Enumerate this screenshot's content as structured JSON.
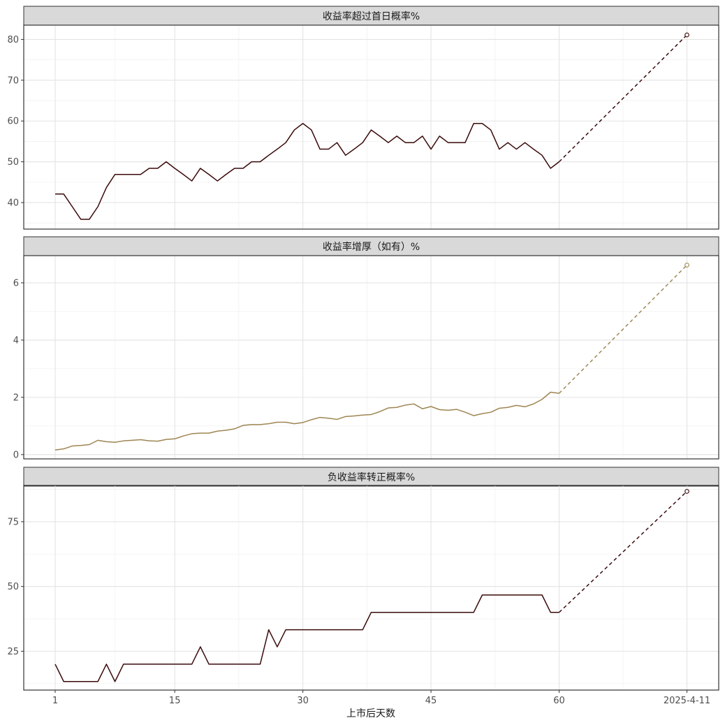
{
  "chart_data": {
    "type": "line",
    "layout": "3 vertically stacked facets, shared x axis, theme_bw grey facet strips",
    "xlabel": "上市后天数",
    "x_ticks": [
      "1",
      "15",
      "30",
      "45",
      "60",
      "2025-4-11"
    ],
    "grid": true,
    "legend": "none",
    "facets": [
      {
        "title": "收益率超过首日概率%",
        "color": "#3a0a0a",
        "y_ticks": [
          40,
          50,
          60,
          70,
          80
        ],
        "ylim": [
          33.5,
          83.5
        ],
        "x": [
          1,
          2,
          3,
          4,
          5,
          6,
          7,
          8,
          9,
          10,
          11,
          12,
          13,
          14,
          15,
          16,
          17,
          18,
          19,
          20,
          21,
          22,
          23,
          24,
          25,
          26,
          27,
          28,
          29,
          30,
          31,
          32,
          33,
          34,
          35,
          36,
          37,
          38,
          39,
          40,
          41,
          42,
          43,
          44,
          45,
          46,
          47,
          48,
          49,
          50,
          51,
          52,
          53,
          54,
          55,
          56,
          57,
          58,
          59,
          60
        ],
        "values": [
          42.1,
          42.1,
          39,
          35.9,
          35.9,
          39,
          43.7,
          46.9,
          46.9,
          46.9,
          46.9,
          48.4,
          48.4,
          50,
          48.4,
          46.9,
          45.3,
          48.4,
          46.9,
          45.3,
          46.9,
          48.4,
          48.4,
          50,
          50,
          51.6,
          53.1,
          54.7,
          57.8,
          59.4,
          57.8,
          53.1,
          53.1,
          54.7,
          51.6,
          53.1,
          54.7,
          57.8,
          56.3,
          54.7,
          56.3,
          54.7,
          54.7,
          56.3,
          53.1,
          56.3,
          54.7,
          54.7,
          54.7,
          59.4,
          59.4,
          57.8,
          53.1,
          54.7,
          53.1,
          54.7,
          53.1,
          51.6,
          48.4,
          50
        ],
        "projection": {
          "from_x": 60,
          "from_value": 50,
          "to_label": "2025-4-11",
          "to_value": 81.1
        }
      },
      {
        "title": "收益率增厚（如有）%",
        "color": "#9e8552",
        "y_ticks": [
          0,
          2,
          4,
          6
        ],
        "ylim": [
          -0.15,
          6.95
        ],
        "x": [
          1,
          2,
          3,
          4,
          5,
          6,
          7,
          8,
          9,
          10,
          11,
          12,
          13,
          14,
          15,
          16,
          17,
          18,
          19,
          20,
          21,
          22,
          23,
          24,
          25,
          26,
          27,
          28,
          29,
          30,
          31,
          32,
          33,
          34,
          35,
          36,
          37,
          38,
          39,
          40,
          41,
          42,
          43,
          44,
          45,
          46,
          47,
          48,
          49,
          50,
          51,
          52,
          53,
          54,
          55,
          56,
          57,
          58,
          59,
          60
        ],
        "values": [
          0.16,
          0.2,
          0.3,
          0.32,
          0.35,
          0.5,
          0.45,
          0.43,
          0.48,
          0.5,
          0.52,
          0.48,
          0.47,
          0.53,
          0.55,
          0.65,
          0.73,
          0.75,
          0.75,
          0.82,
          0.85,
          0.9,
          1.02,
          1.05,
          1.05,
          1.08,
          1.13,
          1.13,
          1.08,
          1.12,
          1.22,
          1.3,
          1.27,
          1.23,
          1.33,
          1.35,
          1.38,
          1.4,
          1.5,
          1.63,
          1.65,
          1.73,
          1.77,
          1.6,
          1.68,
          1.57,
          1.55,
          1.58,
          1.48,
          1.36,
          1.43,
          1.48,
          1.62,
          1.65,
          1.72,
          1.67,
          1.77,
          1.93,
          2.18,
          2.14
        ],
        "projection": {
          "from_x": 60,
          "from_value": 2.14,
          "to_label": "2025-4-11",
          "to_value": 6.62
        }
      },
      {
        "title": "负收益率转正概率%",
        "color": "#3a0a0a",
        "y_ticks": [
          25,
          50,
          75
        ],
        "ylim": [
          10,
          89
        ],
        "x": [
          1,
          2,
          3,
          4,
          5,
          6,
          7,
          8,
          9,
          10,
          11,
          12,
          13,
          14,
          15,
          16,
          17,
          18,
          19,
          20,
          21,
          22,
          23,
          24,
          25,
          26,
          27,
          28,
          29,
          30,
          31,
          32,
          33,
          34,
          35,
          36,
          37,
          38,
          39,
          40,
          41,
          42,
          43,
          44,
          45,
          46,
          47,
          48,
          49,
          50,
          51,
          52,
          53,
          54,
          55,
          56,
          57,
          58,
          59,
          60
        ],
        "values": [
          20,
          13.3,
          13.3,
          13.3,
          13.3,
          13.3,
          20,
          13.3,
          20,
          20,
          20,
          20,
          20,
          20,
          20,
          20,
          20,
          26.7,
          20,
          20,
          20,
          20,
          20,
          20,
          20,
          33.3,
          26.7,
          33.3,
          33.3,
          33.3,
          33.3,
          33.3,
          33.3,
          33.3,
          33.3,
          33.3,
          33.3,
          40,
          40,
          40,
          40,
          40,
          40,
          40,
          40,
          40,
          40,
          40,
          40,
          40,
          46.7,
          46.7,
          46.7,
          46.7,
          46.7,
          46.7,
          46.7,
          46.7,
          40,
          40
        ],
        "projection": {
          "from_x": 60,
          "from_value": 40,
          "to_label": "2025-4-11",
          "to_value": 86.7
        }
      }
    ]
  }
}
